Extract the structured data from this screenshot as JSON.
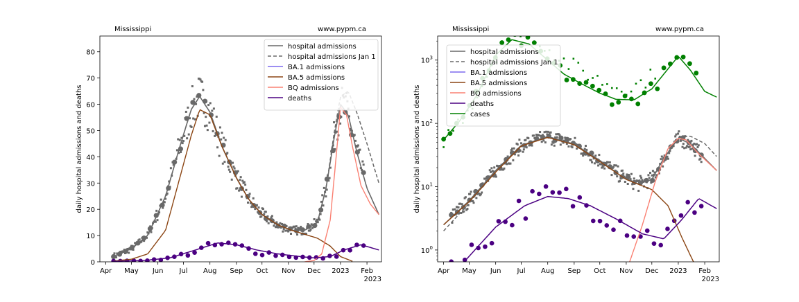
{
  "charts": [
    {
      "location": "Mississippi",
      "source": "www.pypm.ca",
      "ylabel": "daily hospital admissions and deaths",
      "xyear": "2023",
      "scale": "linear",
      "ylim": [
        0,
        86
      ],
      "yticks": [
        0,
        10,
        20,
        30,
        40,
        50,
        60,
        70,
        80
      ],
      "legend": [
        "hospital admissions",
        "hospital admissions Jan 1",
        "BA.1 admissions",
        "BA.5 admissions",
        "BQ admissions",
        "deaths"
      ]
    },
    {
      "location": "Mississippi",
      "source": "www.pypm.ca",
      "ylabel": "daily hospital admissions and deaths",
      "xyear": "2023",
      "scale": "log",
      "ylim": [
        0.65,
        2400
      ],
      "yticks": [
        "10^0",
        "10^1",
        "10^2",
        "10^3"
      ],
      "legend": [
        "hospital admissions",
        "hospital admissions Jan 1",
        "BA.1 admissions",
        "BA.5 admissions",
        "BQ admissions",
        "deaths",
        "cases"
      ]
    }
  ],
  "xticks": [
    "Apr",
    "May",
    "Jun",
    "Jul",
    "Aug",
    "Sep",
    "Oct",
    "Nov",
    "Dec",
    "2023",
    "Feb"
  ],
  "colors": {
    "hospital": "#696969",
    "ba1": "#7b68ee",
    "ba5": "#8b4513",
    "bq": "#fa8072",
    "deaths": "#4b0082",
    "cases": "#008000"
  },
  "chart_data": [
    {
      "type": "line",
      "title": "",
      "xlabel": "",
      "ylabel": "daily hospital admissions and deaths",
      "ylim": [
        0,
        86
      ],
      "x_range": [
        "2022-03-25",
        "2023-02-18"
      ],
      "series": [
        {
          "name": "hospital admissions",
          "x": [
            "2022-04-10",
            "2022-05-01",
            "2022-05-20",
            "2022-06-10",
            "2022-06-25",
            "2022-07-10",
            "2022-07-20",
            "2022-08-01",
            "2022-08-15",
            "2022-09-01",
            "2022-09-15",
            "2022-10-01",
            "2022-10-20",
            "2022-11-05",
            "2022-11-20",
            "2022-12-05",
            "2022-12-15",
            "2022-12-25",
            "2023-01-01",
            "2023-01-10",
            "2023-01-20",
            "2023-02-01",
            "2023-02-15"
          ],
          "y": [
            2,
            5,
            10,
            25,
            42,
            58,
            63,
            57,
            44,
            32,
            24,
            18,
            14,
            12,
            12,
            15,
            28,
            48,
            60,
            56,
            42,
            28,
            18
          ]
        },
        {
          "name": "hospital admissions Jan 1",
          "x": [
            "2022-04-10",
            "2022-05-01",
            "2022-05-20",
            "2022-06-10",
            "2022-06-25",
            "2022-07-10",
            "2022-07-20",
            "2022-08-01",
            "2022-08-15",
            "2022-09-01",
            "2022-09-15",
            "2022-10-01",
            "2022-10-20",
            "2022-11-05",
            "2022-11-20",
            "2022-12-05",
            "2022-12-15",
            "2022-12-25",
            "2023-01-01",
            "2023-01-10",
            "2023-01-20",
            "2023-02-01",
            "2023-02-15"
          ],
          "y": [
            2,
            5,
            10,
            25,
            42,
            58,
            63,
            57,
            44,
            32,
            24,
            18,
            14,
            12,
            12,
            15,
            28,
            50,
            63,
            65,
            57,
            45,
            30
          ]
        },
        {
          "name": "BA.5 admissions",
          "x": [
            "2022-04-10",
            "2022-05-01",
            "2022-05-20",
            "2022-06-10",
            "2022-06-25",
            "2022-07-10",
            "2022-07-20",
            "2022-08-01",
            "2022-08-15",
            "2022-09-01",
            "2022-09-15",
            "2022-10-01",
            "2022-10-20",
            "2022-11-05",
            "2022-11-20",
            "2022-12-05",
            "2022-12-20",
            "2023-01-01",
            "2023-01-15"
          ],
          "y": [
            0.3,
            1,
            3,
            12,
            30,
            48,
            58,
            56,
            44,
            32,
            24,
            18,
            14,
            12,
            10.5,
            9,
            6,
            2,
            0.2
          ]
        },
        {
          "name": "BQ admissions",
          "x": [
            "2022-11-20",
            "2022-12-01",
            "2022-12-10",
            "2022-12-20",
            "2022-12-28",
            "2023-01-01",
            "2023-01-08",
            "2023-01-15",
            "2023-01-25",
            "2023-02-05",
            "2023-02-15"
          ],
          "y": [
            0,
            0.5,
            3,
            16,
            44,
            59,
            56,
            44,
            29,
            22,
            18
          ]
        },
        {
          "name": "deaths",
          "x": [
            "2022-04-10",
            "2022-05-15",
            "2022-06-15",
            "2022-07-15",
            "2022-08-10",
            "2022-09-01",
            "2022-09-25",
            "2022-10-20",
            "2022-11-15",
            "2022-12-01",
            "2022-12-20",
            "2023-01-05",
            "2023-01-25",
            "2023-02-15"
          ],
          "y": [
            0.2,
            0.5,
            1.5,
            4.5,
            7.2,
            6.5,
            4.5,
            3,
            2,
            1.5,
            2,
            4.5,
            6.5,
            4.5
          ]
        }
      ]
    },
    {
      "type": "line",
      "title": "",
      "xlabel": "",
      "ylabel": "daily hospital admissions and deaths",
      "yscale": "log",
      "ylim": [
        0.65,
        2400
      ],
      "x_range": [
        "2022-03-25",
        "2023-02-18"
      ],
      "series": [
        {
          "name": "hospital admissions",
          "x": [
            "2022-04-01",
            "2022-05-01",
            "2022-06-01",
            "2022-07-01",
            "2022-08-01",
            "2022-09-01",
            "2022-10-01",
            "2022-10-25",
            "2022-11-15",
            "2022-12-01",
            "2022-12-15",
            "2023-01-01",
            "2023-01-15",
            "2023-02-01",
            "2023-02-15"
          ],
          "y": [
            2.5,
            6,
            18,
            45,
            62,
            47,
            26,
            15,
            11,
            13,
            28,
            58,
            48,
            28,
            18
          ]
        },
        {
          "name": "hospital admissions Jan 1",
          "x": [
            "2022-04-01",
            "2022-05-01",
            "2022-06-01",
            "2022-07-01",
            "2022-08-01",
            "2022-09-01",
            "2022-10-01",
            "2022-10-25",
            "2022-11-15",
            "2022-12-01",
            "2022-12-15",
            "2023-01-01",
            "2023-01-15",
            "2023-02-01",
            "2023-02-15"
          ],
          "y": [
            2,
            5.5,
            18,
            45,
            62,
            47,
            26,
            15,
            11,
            13,
            28,
            60,
            63,
            48,
            30
          ]
        },
        {
          "name": "BA.5 admissions",
          "x": [
            "2022-04-01",
            "2022-05-01",
            "2022-06-01",
            "2022-07-01",
            "2022-08-01",
            "2022-09-01",
            "2022-10-01",
            "2022-11-01",
            "2022-12-01",
            "2022-12-20",
            "2023-01-05",
            "2023-01-20"
          ],
          "y": [
            2.5,
            5.8,
            17,
            44,
            60,
            46,
            25,
            13,
            9,
            5,
            1.6,
            0.6
          ]
        },
        {
          "name": "BQ admissions",
          "x": [
            "2022-11-05",
            "2022-11-20",
            "2022-12-05",
            "2022-12-20",
            "2023-01-01",
            "2023-01-10",
            "2023-01-25",
            "2023-02-15"
          ],
          "y": [
            0.65,
            2.5,
            12,
            40,
            58,
            55,
            33,
            18
          ]
        },
        {
          "name": "deaths",
          "x": [
            "2022-04-25",
            "2022-06-01",
            "2022-07-05",
            "2022-08-01",
            "2022-08-25",
            "2022-09-20",
            "2022-10-20",
            "2022-11-20",
            "2022-12-15",
            "2023-01-05",
            "2023-01-25",
            "2023-02-15"
          ],
          "y": [
            0.65,
            2.3,
            5,
            7,
            6.5,
            5,
            3.1,
            1.8,
            1.5,
            3,
            6.5,
            4.5
          ]
        },
        {
          "name": "cases",
          "x": [
            "2022-04-01",
            "2022-04-20",
            "2022-05-10",
            "2022-06-01",
            "2022-06-20",
            "2022-07-10",
            "2022-08-01",
            "2022-08-20",
            "2022-09-10",
            "2022-10-01",
            "2022-10-20",
            "2022-11-10",
            "2022-12-01",
            "2022-12-15",
            "2023-01-01",
            "2023-01-15",
            "2023-02-01",
            "2023-02-15"
          ],
          "y": [
            55,
            110,
            280,
            1200,
            2100,
            1800,
            1000,
            600,
            420,
            300,
            240,
            235,
            350,
            600,
            1150,
            700,
            320,
            260
          ]
        }
      ]
    }
  ]
}
